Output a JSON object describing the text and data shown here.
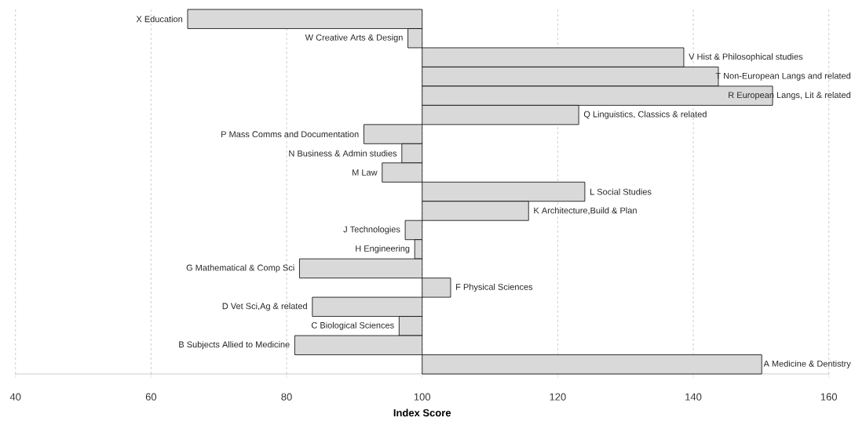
{
  "chart_data": {
    "type": "bar",
    "orientation": "horizontal",
    "xlabel": "Index Score",
    "categories": [
      "X Education",
      "W Creative Arts & Design",
      "V Hist & Philosophical studies",
      "T Non-European Langs and related",
      "R European Langs, Lit & related",
      "Q Linguistics, Classics & related",
      "P Mass Comms and Documentation",
      "N Business & Admin studies",
      "M Law",
      "L Social Studies",
      "K Architecture,Build & Plan",
      "J Technologies",
      "H Engineering",
      "G Mathematical & Comp Sci",
      "F Physical Sciences",
      "D Vet Sci,Ag & related",
      "C Biological Sciences",
      "B Subjects Allied to Medicine",
      "A Medicine & Dentistry"
    ],
    "base": [
      100,
      100,
      100,
      100,
      100,
      100,
      100,
      100,
      100,
      100,
      100,
      100,
      100,
      100,
      100,
      100,
      100,
      100,
      100
    ],
    "values": [
      -34.6,
      -2.1,
      38.6,
      43.7,
      51.7,
      23.1,
      -8.6,
      -3.0,
      -5.9,
      24.0,
      15.7,
      -2.5,
      -1.1,
      -18.1,
      4.2,
      -16.2,
      -3.4,
      -18.8,
      50.1
    ],
    "color": "#d9d9d9",
    "xlim": [
      40,
      160
    ],
    "xticks": [
      40,
      60,
      80,
      100,
      120,
      140,
      160
    ],
    "grid": "x"
  }
}
